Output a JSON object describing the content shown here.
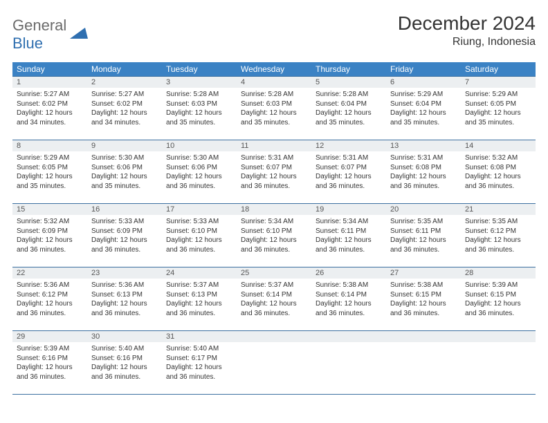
{
  "logo": {
    "part1": "General",
    "part2": "Blue"
  },
  "header": {
    "title": "December 2024",
    "location": "Riung, Indonesia"
  },
  "colors": {
    "header_bg": "#3b82c4",
    "header_text": "#ffffff",
    "daynum_bg": "#eceff1",
    "border": "#3b6fa0",
    "logo_gray": "#6b6b6b",
    "logo_blue": "#2f6fb0"
  },
  "dow": [
    "Sunday",
    "Monday",
    "Tuesday",
    "Wednesday",
    "Thursday",
    "Friday",
    "Saturday"
  ],
  "weeks": [
    [
      {
        "n": "1",
        "sr": "Sunrise: 5:27 AM",
        "ss": "Sunset: 6:02 PM",
        "d1": "Daylight: 12 hours",
        "d2": "and 34 minutes."
      },
      {
        "n": "2",
        "sr": "Sunrise: 5:27 AM",
        "ss": "Sunset: 6:02 PM",
        "d1": "Daylight: 12 hours",
        "d2": "and 34 minutes."
      },
      {
        "n": "3",
        "sr": "Sunrise: 5:28 AM",
        "ss": "Sunset: 6:03 PM",
        "d1": "Daylight: 12 hours",
        "d2": "and 35 minutes."
      },
      {
        "n": "4",
        "sr": "Sunrise: 5:28 AM",
        "ss": "Sunset: 6:03 PM",
        "d1": "Daylight: 12 hours",
        "d2": "and 35 minutes."
      },
      {
        "n": "5",
        "sr": "Sunrise: 5:28 AM",
        "ss": "Sunset: 6:04 PM",
        "d1": "Daylight: 12 hours",
        "d2": "and 35 minutes."
      },
      {
        "n": "6",
        "sr": "Sunrise: 5:29 AM",
        "ss": "Sunset: 6:04 PM",
        "d1": "Daylight: 12 hours",
        "d2": "and 35 minutes."
      },
      {
        "n": "7",
        "sr": "Sunrise: 5:29 AM",
        "ss": "Sunset: 6:05 PM",
        "d1": "Daylight: 12 hours",
        "d2": "and 35 minutes."
      }
    ],
    [
      {
        "n": "8",
        "sr": "Sunrise: 5:29 AM",
        "ss": "Sunset: 6:05 PM",
        "d1": "Daylight: 12 hours",
        "d2": "and 35 minutes."
      },
      {
        "n": "9",
        "sr": "Sunrise: 5:30 AM",
        "ss": "Sunset: 6:06 PM",
        "d1": "Daylight: 12 hours",
        "d2": "and 35 minutes."
      },
      {
        "n": "10",
        "sr": "Sunrise: 5:30 AM",
        "ss": "Sunset: 6:06 PM",
        "d1": "Daylight: 12 hours",
        "d2": "and 36 minutes."
      },
      {
        "n": "11",
        "sr": "Sunrise: 5:31 AM",
        "ss": "Sunset: 6:07 PM",
        "d1": "Daylight: 12 hours",
        "d2": "and 36 minutes."
      },
      {
        "n": "12",
        "sr": "Sunrise: 5:31 AM",
        "ss": "Sunset: 6:07 PM",
        "d1": "Daylight: 12 hours",
        "d2": "and 36 minutes."
      },
      {
        "n": "13",
        "sr": "Sunrise: 5:31 AM",
        "ss": "Sunset: 6:08 PM",
        "d1": "Daylight: 12 hours",
        "d2": "and 36 minutes."
      },
      {
        "n": "14",
        "sr": "Sunrise: 5:32 AM",
        "ss": "Sunset: 6:08 PM",
        "d1": "Daylight: 12 hours",
        "d2": "and 36 minutes."
      }
    ],
    [
      {
        "n": "15",
        "sr": "Sunrise: 5:32 AM",
        "ss": "Sunset: 6:09 PM",
        "d1": "Daylight: 12 hours",
        "d2": "and 36 minutes."
      },
      {
        "n": "16",
        "sr": "Sunrise: 5:33 AM",
        "ss": "Sunset: 6:09 PM",
        "d1": "Daylight: 12 hours",
        "d2": "and 36 minutes."
      },
      {
        "n": "17",
        "sr": "Sunrise: 5:33 AM",
        "ss": "Sunset: 6:10 PM",
        "d1": "Daylight: 12 hours",
        "d2": "and 36 minutes."
      },
      {
        "n": "18",
        "sr": "Sunrise: 5:34 AM",
        "ss": "Sunset: 6:10 PM",
        "d1": "Daylight: 12 hours",
        "d2": "and 36 minutes."
      },
      {
        "n": "19",
        "sr": "Sunrise: 5:34 AM",
        "ss": "Sunset: 6:11 PM",
        "d1": "Daylight: 12 hours",
        "d2": "and 36 minutes."
      },
      {
        "n": "20",
        "sr": "Sunrise: 5:35 AM",
        "ss": "Sunset: 6:11 PM",
        "d1": "Daylight: 12 hours",
        "d2": "and 36 minutes."
      },
      {
        "n": "21",
        "sr": "Sunrise: 5:35 AM",
        "ss": "Sunset: 6:12 PM",
        "d1": "Daylight: 12 hours",
        "d2": "and 36 minutes."
      }
    ],
    [
      {
        "n": "22",
        "sr": "Sunrise: 5:36 AM",
        "ss": "Sunset: 6:12 PM",
        "d1": "Daylight: 12 hours",
        "d2": "and 36 minutes."
      },
      {
        "n": "23",
        "sr": "Sunrise: 5:36 AM",
        "ss": "Sunset: 6:13 PM",
        "d1": "Daylight: 12 hours",
        "d2": "and 36 minutes."
      },
      {
        "n": "24",
        "sr": "Sunrise: 5:37 AM",
        "ss": "Sunset: 6:13 PM",
        "d1": "Daylight: 12 hours",
        "d2": "and 36 minutes."
      },
      {
        "n": "25",
        "sr": "Sunrise: 5:37 AM",
        "ss": "Sunset: 6:14 PM",
        "d1": "Daylight: 12 hours",
        "d2": "and 36 minutes."
      },
      {
        "n": "26",
        "sr": "Sunrise: 5:38 AM",
        "ss": "Sunset: 6:14 PM",
        "d1": "Daylight: 12 hours",
        "d2": "and 36 minutes."
      },
      {
        "n": "27",
        "sr": "Sunrise: 5:38 AM",
        "ss": "Sunset: 6:15 PM",
        "d1": "Daylight: 12 hours",
        "d2": "and 36 minutes."
      },
      {
        "n": "28",
        "sr": "Sunrise: 5:39 AM",
        "ss": "Sunset: 6:15 PM",
        "d1": "Daylight: 12 hours",
        "d2": "and 36 minutes."
      }
    ],
    [
      {
        "n": "29",
        "sr": "Sunrise: 5:39 AM",
        "ss": "Sunset: 6:16 PM",
        "d1": "Daylight: 12 hours",
        "d2": "and 36 minutes."
      },
      {
        "n": "30",
        "sr": "Sunrise: 5:40 AM",
        "ss": "Sunset: 6:16 PM",
        "d1": "Daylight: 12 hours",
        "d2": "and 36 minutes."
      },
      {
        "n": "31",
        "sr": "Sunrise: 5:40 AM",
        "ss": "Sunset: 6:17 PM",
        "d1": "Daylight: 12 hours",
        "d2": "and 36 minutes."
      },
      null,
      null,
      null,
      null
    ]
  ]
}
